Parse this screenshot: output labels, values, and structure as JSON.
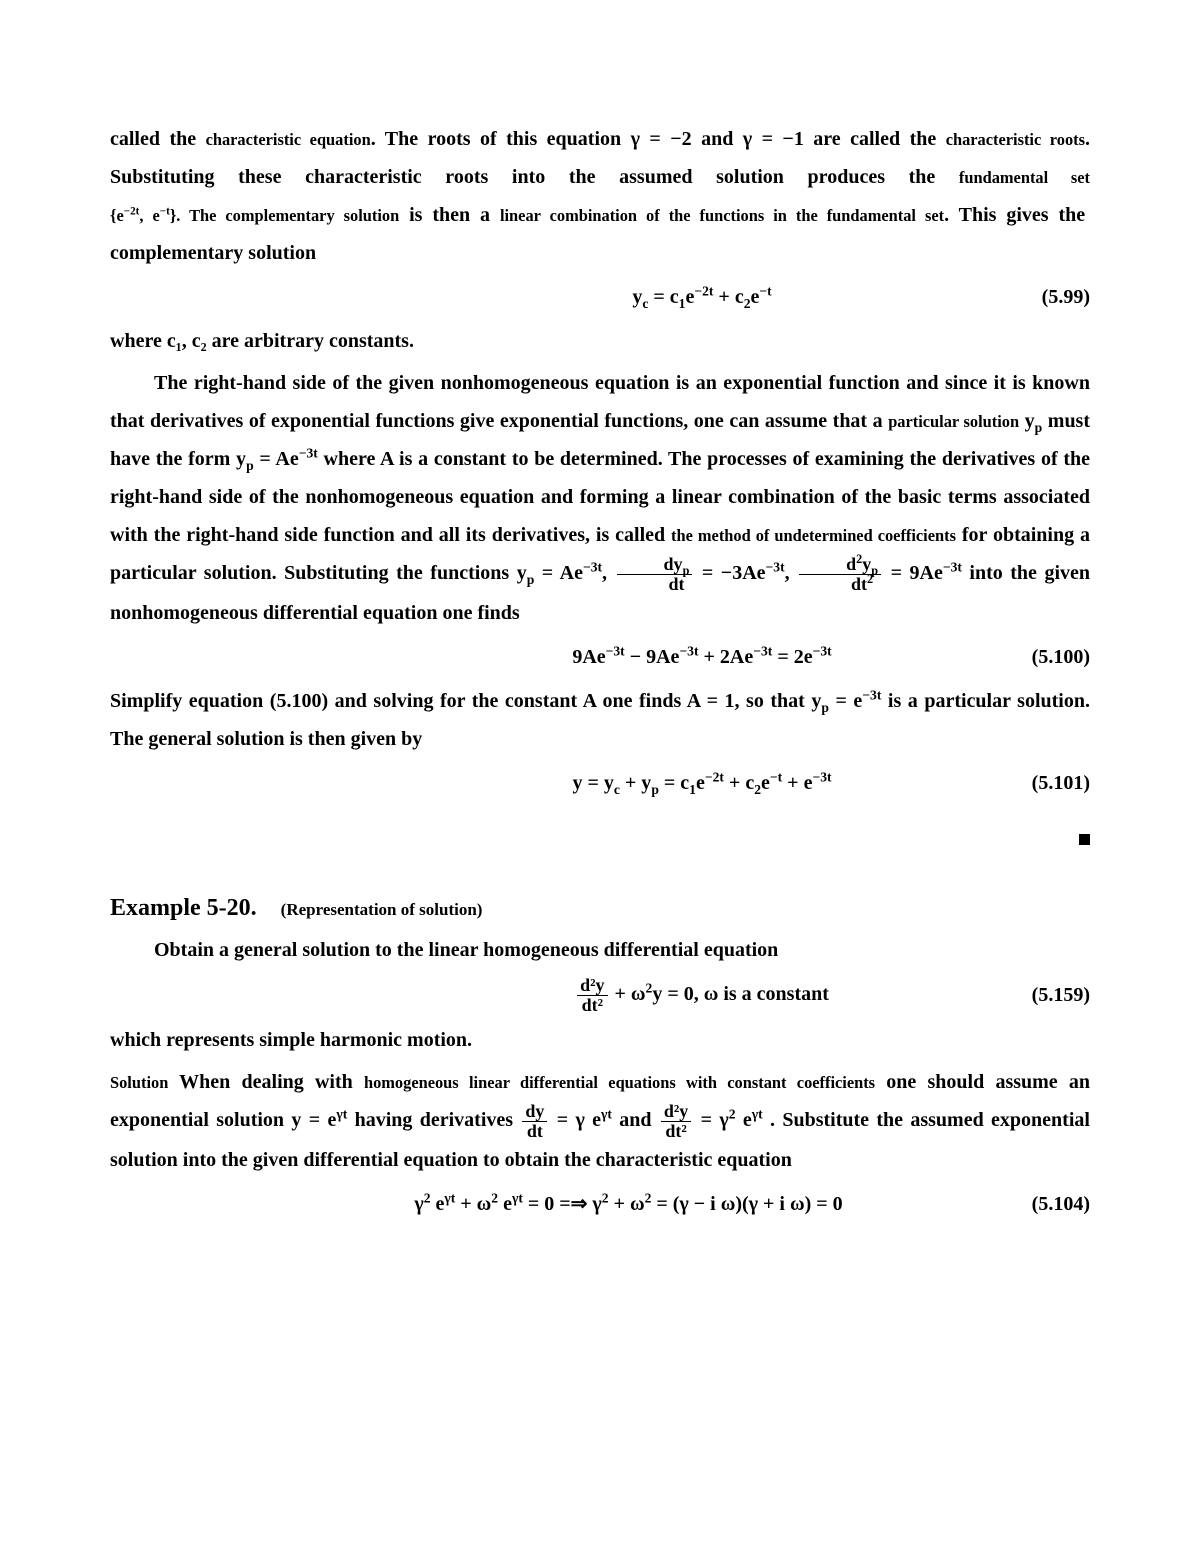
{
  "p1_a": "called the ",
  "p1_b": "characteristic equation",
  "p1_c": ".  The roots of this equation γ = −2 and γ = −1 are called the ",
  "p1_d": "characteristic roots",
  "p1_e": ". Substituting these characteristic roots into the assumed solution produces the ",
  "p1_f": "fundamental set",
  "p1_g": " {e",
  "p1_g_sup1": "−2t",
  "p1_h": ", e",
  "p1_h_sup1": "−t",
  "p1_i": "}. The ",
  "p1_j": "complementary solution",
  "p1_k": " is then a ",
  "p1_l": "linear combination of the functions  in the fundamental set",
  "p1_m": ".  This gives the complementary solution",
  "eq99_lhs": "y",
  "eq99_sub_c": "c",
  "eq99_eq": " = c",
  "eq99_s1": "1",
  "eq99_e1": "e",
  "eq99_p1": "−2t",
  "eq99_plus": " + c",
  "eq99_s2": "2",
  "eq99_e2": "e",
  "eq99_p2": "−t",
  "eq99_num": "(5.99)",
  "p2": "where c₁, c₂ are arbitrary  constants.",
  "p3_a": "The  right-hand side  of  the given nonhomogeneous equation is  an exponential function and since it is known that derivatives of exponential functions give exponential functions, one can assume that  a ",
  "p3_b": "particular  solution",
  "p3_c": " y",
  "p3_c_sub": "p",
  "p3_d": "  must have the form y",
  "p3_d_sub": "p",
  "p3_e": " = Ae",
  "p3_e_sup": "−3t",
  "p3_f": " where A is a constant to be determined. The processes of examining the derivatives of  the right-hand side of  the nonhomogeneous equation and forming a linear combination of the basic terms associated with the right-hand side function and all its derivatives, is called ",
  "p3_g": "the method of undetermined coefficients",
  "p3_h": " for obtaining a particular solution. Substituting the functions ",
  "p3_i_yp": "y",
  "p3_i_sub": "p",
  "p3_i_eq": " = Ae",
  "p3_i_sup": "−3t",
  "p3_i_comma": ",  ",
  "p3_i_f1n": "dy",
  "p3_i_f1n_sub": "p",
  "p3_i_f1d": "dt",
  "p3_i_eq2": " = −3Ae",
  "p3_i_sup2": "−3t",
  "p3_i_comma2": ",  ",
  "p3_i_f2n": "d",
  "p3_i_f2n_sup": "2",
  "p3_i_f2n_y": "y",
  "p3_i_f2n_sub2": "p",
  "p3_i_f2d": "dt",
  "p3_i_f2d_sup": "2",
  "p3_i_eq3": " = 9Ae",
  "p3_i_sup3": "−3t",
  "p3_i_tail": " into the given nonhomogeneous differential equation one finds",
  "eq100": "9Ae",
  "eq100_s1": "−3t",
  "eq100_m": " − 9Ae",
  "eq100_s2": "−3t",
  "eq100_p": " + 2Ae",
  "eq100_s3": "−3t",
  "eq100_eq": " = 2e",
  "eq100_s4": "−3t",
  "eq100_num": "(5.100)",
  "p4_a": "Simplify equation (5.100) and solving for the constant A one finds A = 1, so that y",
  "p4_a_sub": "p",
  "p4_b": " = e",
  "p4_b_sup": "−3t",
  "p4_c": " is a particular solution. The general solution is then given by",
  "eq101_a": "y = y",
  "eq101_sc": "c",
  "eq101_b": " + y",
  "eq101_sp": "p",
  "eq101_c": " = c",
  "eq101_s1": "1",
  "eq101_e1": "e",
  "eq101_p1": "−2t",
  "eq101_d": " + c",
  "eq101_s2": "2",
  "eq101_e2": "e",
  "eq101_p2": "−t",
  "eq101_e": " + e",
  "eq101_p3": "−3t",
  "eq101_num": "(5.101)",
  "ex_head": "Example 5-20.",
  "ex_sub": "(Representation of solution)",
  "ex_prompt": "Obtain a general solution to the linear homogeneous differential equation",
  "eq159_f_num": "d²y",
  "eq159_f_den": "dt²",
  "eq159_a": " + ω",
  "eq159_a_sup": "2",
  "eq159_b": "y = 0,     ω is a constant",
  "eq159_num": "(5.159)",
  "p5": "which represents simple harmonic motion.",
  "p6_a": "Solution",
  "p6_b": " When dealing with ",
  "p6_c": "homogeneous linear differential equations with constant coefficients",
  "p6_d": " one should assume an exponential solution y = e",
  "p6_d_sup": "γt",
  "p6_e": " having derivatives ",
  "p6_f1n": "dy",
  "p6_f1d": "dt",
  "p6_f1_eq": " = γ e",
  "p6_f1_sup": "γt",
  "p6_and": "  and  ",
  "p6_f2n": "d²y",
  "p6_f2d": "dt²",
  "p6_f2_eq": " = γ",
  "p6_f2_sup1": "2",
  "p6_f2_e": " e",
  "p6_f2_sup2": "γt",
  "p6_tail": ". Substitute the assumed exponential solution into the given differential equation to obtain the characteristic equation",
  "eq104_a": "γ",
  "eq104_s1": "2",
  "eq104_b": " e",
  "eq104_s2": "γt",
  "eq104_c": " + ω",
  "eq104_s3": "2",
  "eq104_d": " e",
  "eq104_s4": "γt",
  "eq104_e": " = 0    =⇒    γ",
  "eq104_s5": "2",
  "eq104_f": " + ω",
  "eq104_s6": "2",
  "eq104_g": " = (γ − i ω)(γ + i ω) = 0",
  "eq104_num": "(5.104)"
}
